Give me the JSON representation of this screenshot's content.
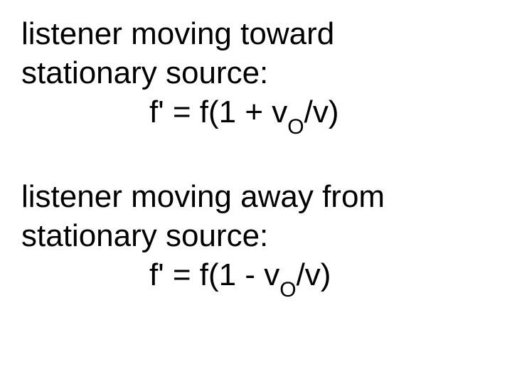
{
  "block1": {
    "line1": "listener moving toward",
    "line2": "stationary source:",
    "formula_prefix": "f' = f(1 + v",
    "formula_sub": "O",
    "formula_suffix": "/v)"
  },
  "block2": {
    "line1": "listener moving away from",
    "line2": "stationary source:",
    "formula_prefix": "f' = f(1 - v",
    "formula_sub": "O",
    "formula_suffix": "/v)"
  },
  "style": {
    "font_size": 44,
    "sub_font_size": 30,
    "background_color": "#ffffff",
    "text_color": "#000000",
    "formula_indent": 180
  }
}
